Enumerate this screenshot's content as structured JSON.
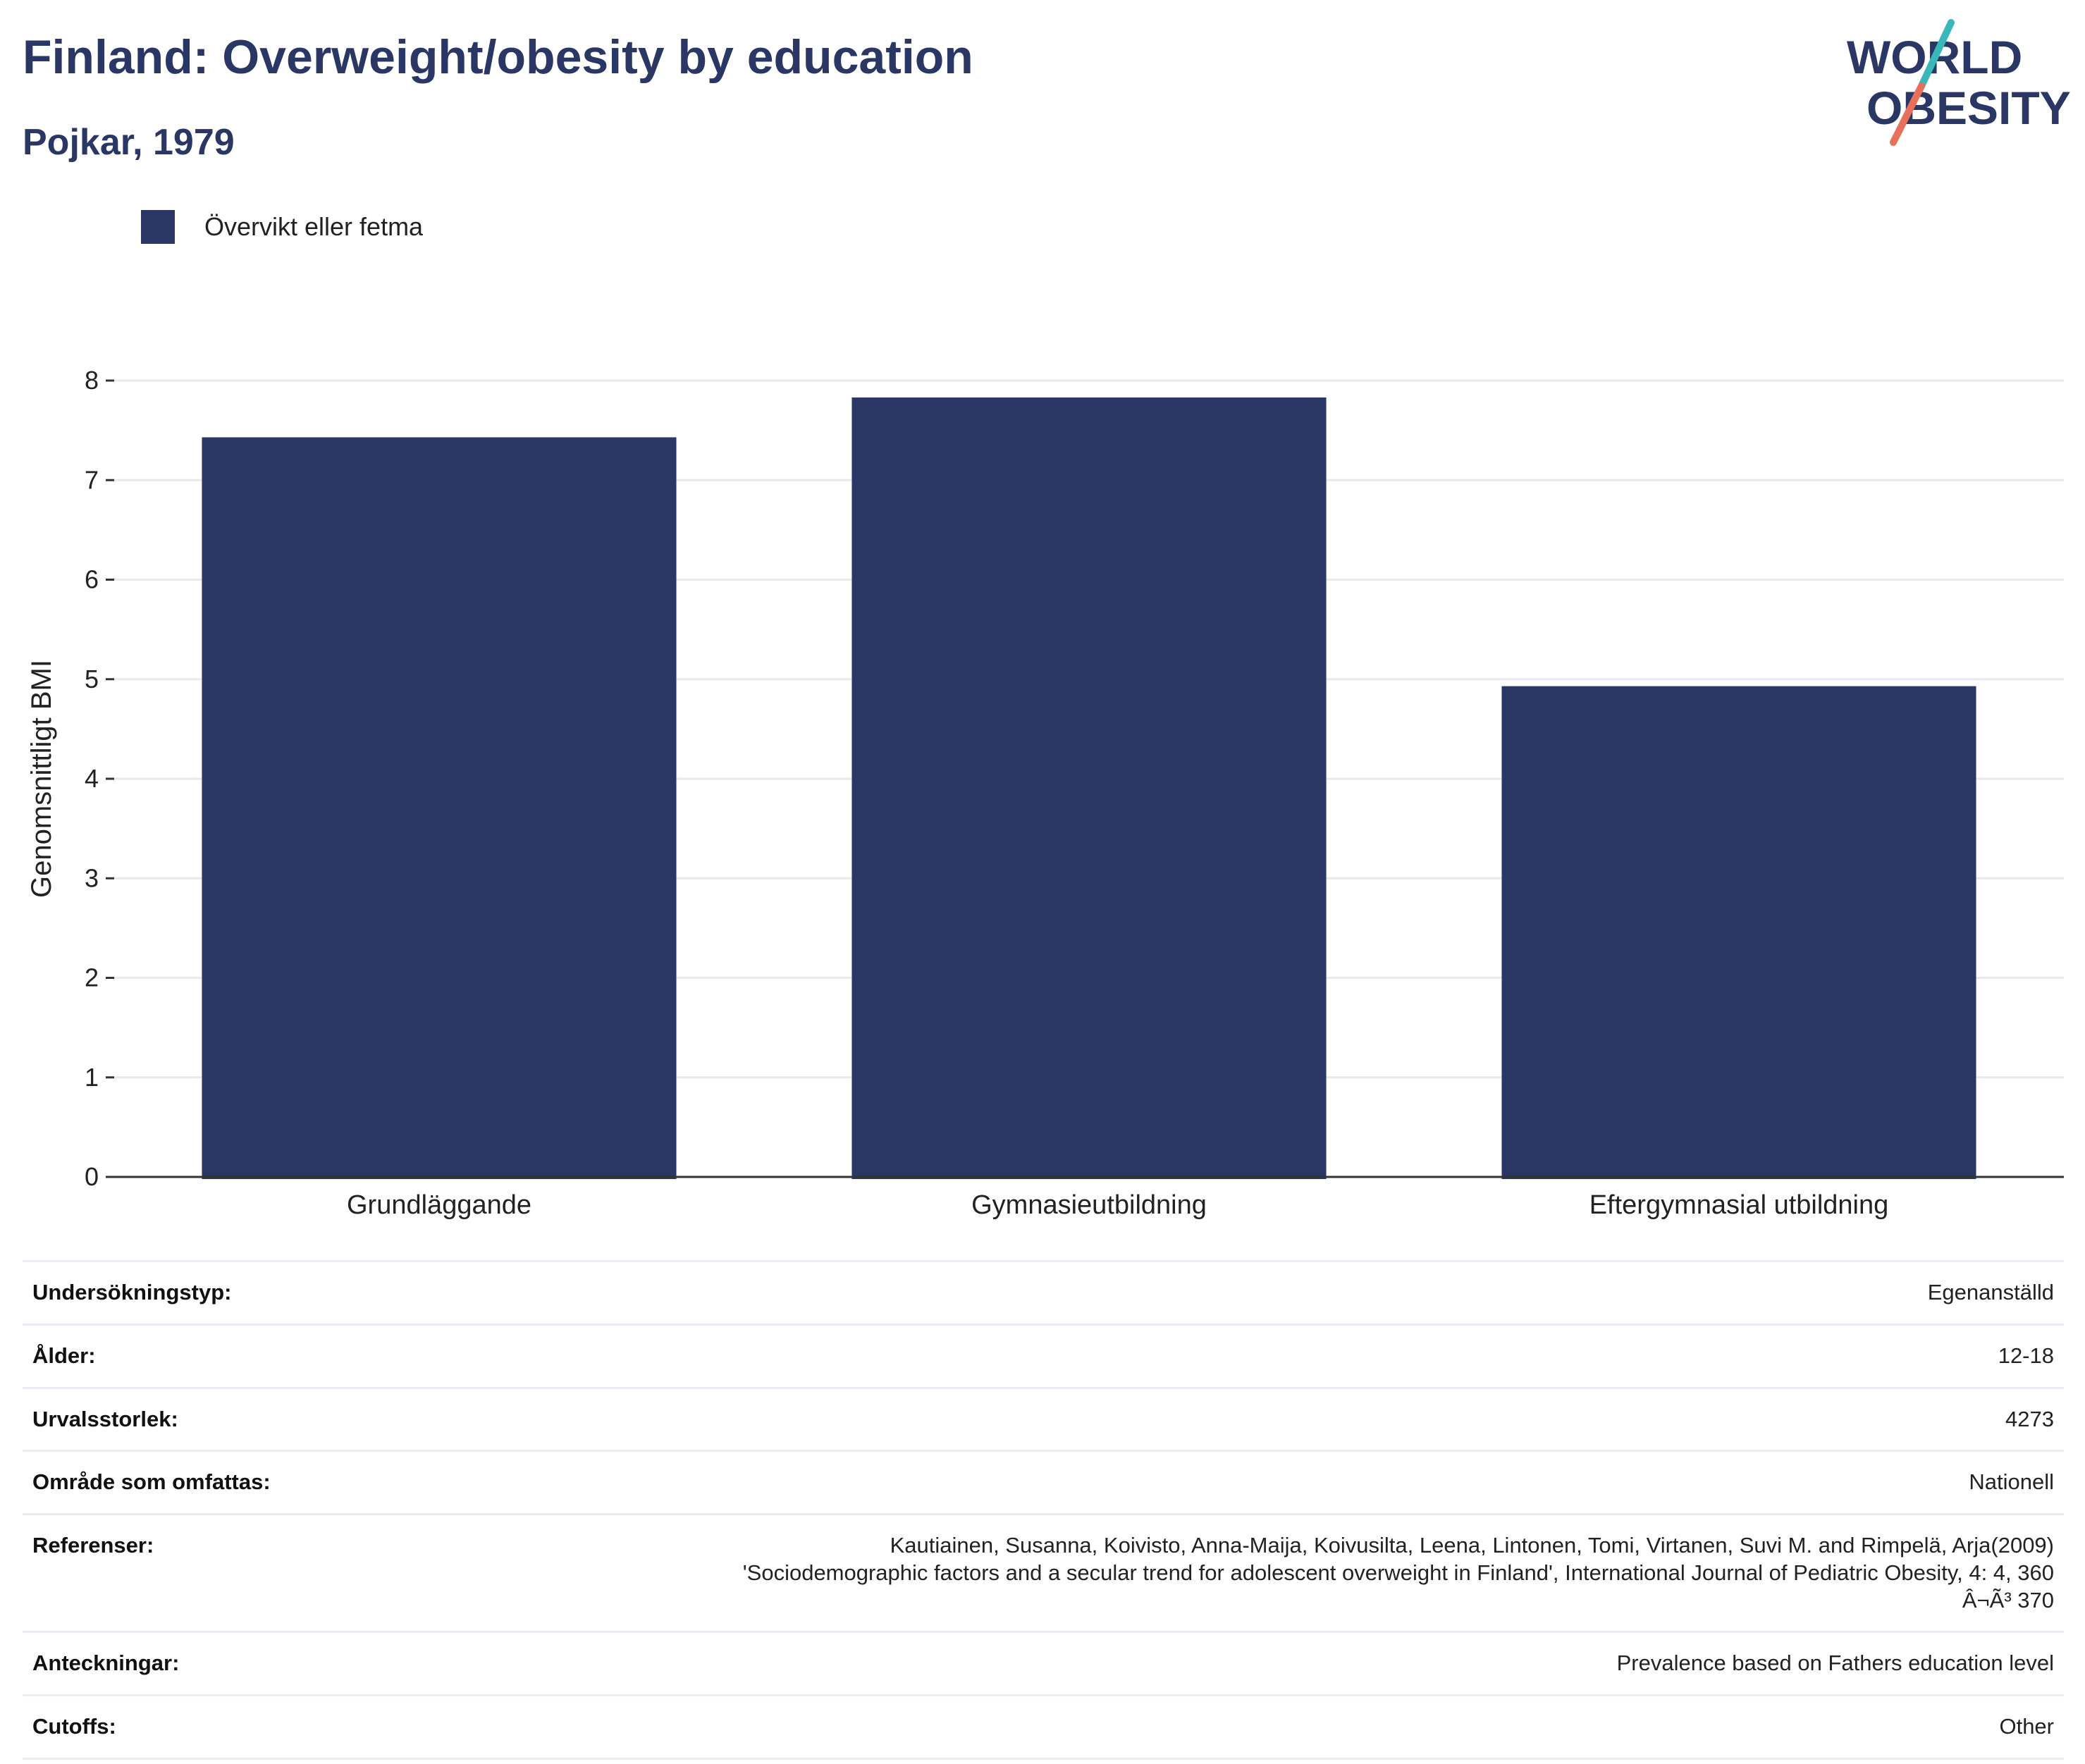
{
  "header": {
    "title": "Finland: Overweight/obesity by education",
    "subtitle": "Pojkar, 1979"
  },
  "logo": {
    "line1": "WORLD",
    "line2": "OBESITY",
    "colors": {
      "text": "#2a3664",
      "teal": "#3ab8b9",
      "coral": "#e8705a"
    }
  },
  "colors": {
    "bar": "#2a3664",
    "grid": "#e8e8ee",
    "axis": "#333333",
    "text": "#222222"
  },
  "chart_data": {
    "type": "bar",
    "title": "Finland: Overweight/obesity by education",
    "subtitle": "Pojkar, 1979",
    "categories": [
      "Grundläggande",
      "Gymnasieutbildning",
      "Eftergymnasial utbildning"
    ],
    "series": [
      {
        "name": "Övervikt eller fetma",
        "values": [
          7.43,
          7.83,
          4.93
        ],
        "color": "#2a3664"
      }
    ],
    "xlabel": "",
    "ylabel": "Genomsnittligt BMI",
    "ylim": [
      0,
      8
    ],
    "yticks": [
      0,
      1,
      2,
      3,
      4,
      5,
      6,
      7,
      8
    ],
    "grid": true,
    "legend": "top-left"
  },
  "meta": {
    "rows": [
      {
        "label": "Undersökningstyp:",
        "value": [
          "Egenanställd"
        ]
      },
      {
        "label": "Ålder:",
        "value": [
          "12-18"
        ]
      },
      {
        "label": "Urvalsstorlek:",
        "value": [
          "4273"
        ]
      },
      {
        "label": "Område som omfattas:",
        "value": [
          "Nationell"
        ]
      },
      {
        "label": "Referenser:",
        "value": [
          "Kautiainen, Susanna, Koivisto, Anna-Maija, Koivusilta, Leena, Lintonen, Tomi, Virtanen, Suvi M. and Rimpelä, Arja(2009)",
          "'Sociodemographic factors and a secular trend for adolescent overweight in Finland', International Journal of Pediatric Obesity, 4: 4, 360",
          "Â¬Ã³ 370"
        ]
      },
      {
        "label": "Anteckningar:",
        "value": [
          "Prevalence based on Fathers education level"
        ]
      },
      {
        "label": "Cutoffs:",
        "value": [
          "Other"
        ]
      }
    ]
  }
}
